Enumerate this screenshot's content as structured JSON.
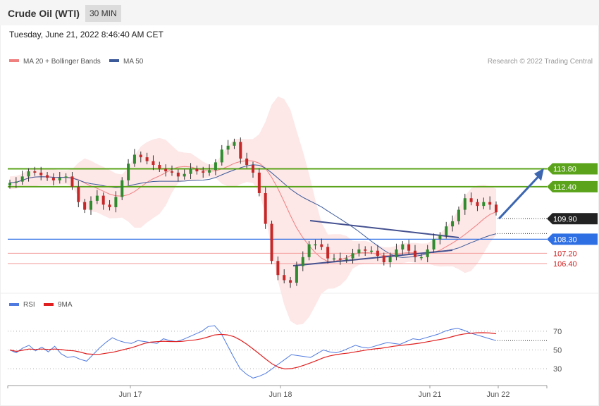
{
  "header": {
    "title": "Crude Oil (WTI)",
    "timeframe": "30 MIN"
  },
  "timestamp": "Tuesday, June 21, 2022 8:46:40 AM CET",
  "legend": {
    "ma20_bb": "MA 20 + Bollinger Bands",
    "ma50": "MA 50",
    "ma20_color": "#f08080",
    "ma50_color": "#3c5a9a"
  },
  "copyright": "Research © 2022 Trading Central",
  "chart_data": {
    "type": "line",
    "price": {
      "ylim": [
        104.3,
        121.7
      ],
      "close_series": [
        112.7,
        112.8,
        113.2,
        113.6,
        113.5,
        113.3,
        113.1,
        112.9,
        113.1,
        113.2,
        112.4,
        111.2,
        110.6,
        111.3,
        111.7,
        111.0,
        110.8,
        111.6,
        112.9,
        114.2,
        114.9,
        114.7,
        114.4,
        114.1,
        113.8,
        113.6,
        113.5,
        113.2,
        113.4,
        113.8,
        113.6,
        113.5,
        113.7,
        114.3,
        115.3,
        115.6,
        115.9,
        114.6,
        114.1,
        113.5,
        111.9,
        109.5,
        106.6,
        105.5,
        105.1,
        104.9,
        106.2,
        106.9,
        107.9,
        107.9,
        107.7,
        106.8,
        106.8,
        106.7,
        106.8,
        107.2,
        107.5,
        107.4,
        107.4,
        107.0,
        106.5,
        106.9,
        107.5,
        107.9,
        107.4,
        106.9,
        106.9,
        107.5,
        108.3,
        108.6,
        109.3,
        109.7,
        110.6,
        111.5,
        111.2,
        110.9,
        111.2,
        111.0,
        110.4
      ],
      "current": 109.9,
      "levels": [
        {
          "value": 113.8,
          "label": "113.80",
          "type": "resistance",
          "color": "#5aa31a"
        },
        {
          "value": 112.4,
          "label": "112.40",
          "type": "resistance",
          "color": "#5aa31a"
        },
        {
          "value": 109.9,
          "label": "109.90",
          "type": "current",
          "color": "#333333"
        },
        {
          "value": 108.3,
          "label": "108.30",
          "type": "pivot",
          "color": "#2f6fe4"
        },
        {
          "value": 107.2,
          "label": "107.20",
          "type": "support",
          "color": "#d22222"
        },
        {
          "value": 106.4,
          "label": "106.40",
          "type": "support",
          "color": "#d22222"
        }
      ]
    },
    "rsi": {
      "ylim": [
        15,
        85
      ],
      "levels": [
        70,
        50,
        30
      ],
      "level_labels": [
        "70",
        "50",
        "30"
      ],
      "series_names": [
        "RSI",
        "9MA"
      ],
      "colors": [
        "#4f7ae0",
        "#e02020"
      ],
      "rsi_series": [
        50,
        47,
        52,
        55,
        49,
        53,
        48,
        54,
        46,
        42,
        43,
        40,
        38,
        45,
        52,
        58,
        63,
        60,
        58,
        57,
        60,
        59,
        58,
        57,
        62,
        60,
        59,
        61,
        64,
        67,
        70,
        75,
        76,
        68,
        55,
        42,
        30,
        24,
        20,
        22,
        25,
        30,
        35,
        40,
        45,
        44,
        43,
        42,
        46,
        50,
        48,
        47,
        49,
        52,
        55,
        53,
        52,
        54,
        56,
        58,
        57,
        56,
        59,
        62,
        61,
        63,
        65,
        67,
        70,
        72,
        73,
        71,
        68,
        66,
        64,
        62,
        60
      ]
    },
    "x_ticks": [
      "Jun 17",
      "Jun 18",
      "Jun 21",
      "Jun 22"
    ]
  }
}
